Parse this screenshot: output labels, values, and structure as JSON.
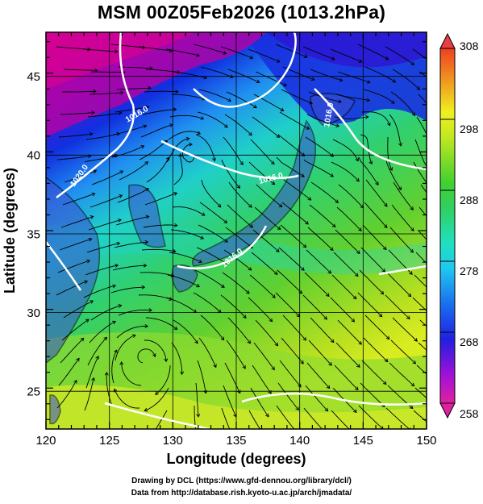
{
  "title": "MSM 00Z05Feb2026 (1013.2hPa)",
  "chart_data": {
    "type": "heatmap",
    "xlabel": "Longitude (degrees)",
    "ylabel": "Latitude  (degrees)",
    "xlim": [
      120,
      150
    ],
    "ylim": [
      22.4,
      47.6
    ],
    "x_ticks": [
      "120",
      "125",
      "130",
      "135",
      "140",
      "145",
      "150"
    ],
    "y_ticks": [
      "25",
      "30",
      "35",
      "40",
      "45"
    ],
    "colorbar": {
      "range": [
        258,
        308
      ],
      "ticks": [
        "258",
        "268",
        "278",
        "288",
        "298",
        "308"
      ]
    },
    "contour_labels": [
      "1016.0",
      "1016.0",
      "1016.0",
      "1020.0",
      "1016.0"
    ],
    "grid": true,
    "overlay": "streamlines"
  },
  "credits": {
    "line1": "Drawing by DCL (https://www.gfd-dennou.org/library/dcl/)",
    "line2": "Data from http://database.rish.kyoto-u.ac.jp/arch/jmadata/"
  },
  "colors": {
    "low": "#e0007a",
    "mid_cold": "#1a2ad8",
    "cyan": "#2ad8d8",
    "green": "#3fcf3f",
    "high": "#e8f000"
  }
}
